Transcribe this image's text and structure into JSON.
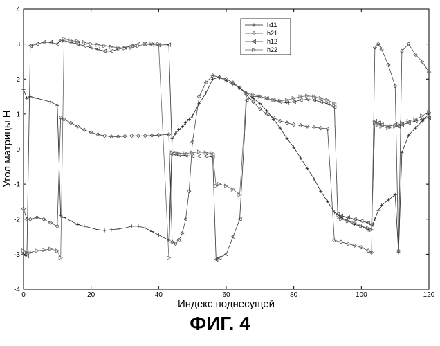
{
  "figure": {
    "caption": "ФИГ. 4"
  },
  "chart_data": {
    "type": "line",
    "title": "",
    "xlabel": "Индекс поднесущей",
    "ylabel": "Угол матрицы H",
    "xlim": [
      0,
      120
    ],
    "ylim": [
      -4,
      4
    ],
    "xticks": [
      0,
      20,
      40,
      60,
      80,
      100,
      120
    ],
    "yticks": [
      -4,
      -3,
      -2,
      -1,
      0,
      1,
      2,
      3,
      4
    ],
    "grid": false,
    "legend_position": "top-center",
    "series": [
      {
        "name": "h11",
        "marker": "plus",
        "color": "#222222",
        "x": [
          0,
          1,
          2,
          4,
          6,
          8,
          10,
          11,
          12,
          14,
          16,
          18,
          20,
          22,
          24,
          26,
          28,
          30,
          32,
          34,
          36,
          38,
          40,
          43,
          44,
          45,
          46,
          47,
          48,
          49,
          50,
          52,
          54,
          56,
          58,
          60,
          62,
          64,
          66,
          68,
          70,
          72,
          74,
          76,
          78,
          80,
          82,
          84,
          86,
          88,
          90,
          92,
          94,
          96,
          98,
          100,
          102,
          103,
          104,
          105,
          106,
          108,
          110,
          111,
          112,
          114,
          116,
          118,
          120
        ],
        "y": [
          1.7,
          1.45,
          1.5,
          1.45,
          1.4,
          1.35,
          1.25,
          -1.9,
          -1.95,
          -2.05,
          -2.15,
          -2.2,
          -2.25,
          -2.3,
          -2.32,
          -2.3,
          -2.28,
          -2.25,
          -2.2,
          -2.2,
          -2.25,
          -2.35,
          -2.45,
          -2.6,
          0.3,
          0.45,
          0.55,
          0.65,
          0.75,
          0.85,
          0.95,
          1.3,
          1.6,
          2.0,
          2.05,
          1.95,
          1.85,
          1.75,
          1.6,
          1.45,
          1.3,
          1.1,
          0.85,
          0.6,
          0.3,
          0.05,
          -0.25,
          -0.55,
          -0.85,
          -1.2,
          -1.5,
          -1.8,
          -1.95,
          -2.05,
          -2.15,
          -2.2,
          -2.3,
          -2.25,
          -2.0,
          -1.75,
          -1.6,
          -1.45,
          -1.3,
          -2.95,
          -0.1,
          0.4,
          0.6,
          0.8,
          1.0
        ]
      },
      {
        "name": "h21",
        "marker": "diamond",
        "color": "#444444",
        "x": [
          0,
          1,
          2,
          4,
          6,
          8,
          10,
          11,
          12,
          14,
          16,
          18,
          20,
          22,
          24,
          26,
          28,
          30,
          32,
          34,
          36,
          38,
          40,
          43,
          44,
          45,
          46,
          47,
          48,
          49,
          50,
          52,
          54,
          56,
          58,
          60,
          62,
          64,
          66,
          68,
          70,
          72,
          74,
          76,
          78,
          80,
          82,
          84,
          86,
          88,
          90,
          92,
          94,
          96,
          98,
          100,
          102,
          103,
          104,
          105,
          106,
          108,
          110,
          111,
          112,
          114,
          116,
          118,
          120
        ],
        "y": [
          -1.7,
          -2.0,
          -2.0,
          -1.95,
          -2.0,
          -2.1,
          -2.2,
          0.9,
          0.85,
          0.75,
          0.65,
          0.55,
          0.48,
          0.42,
          0.38,
          0.36,
          0.36,
          0.37,
          0.38,
          0.38,
          0.38,
          0.39,
          0.4,
          0.42,
          -2.65,
          -2.7,
          -2.6,
          -2.4,
          -2.0,
          -1.2,
          0.2,
          1.5,
          1.9,
          2.1,
          2.05,
          2.0,
          1.9,
          1.75,
          1.55,
          1.35,
          1.15,
          1.0,
          0.9,
          0.8,
          0.75,
          0.7,
          0.68,
          0.65,
          0.62,
          0.6,
          0.58,
          -2.6,
          -2.65,
          -2.7,
          -2.75,
          -2.8,
          -2.9,
          -2.95,
          2.9,
          3.0,
          2.85,
          2.4,
          1.8,
          -2.9,
          2.8,
          3.0,
          2.7,
          2.5,
          2.2
        ]
      },
      {
        "name": "h12",
        "marker": "triangle-left",
        "color": "#333333",
        "x": [
          0,
          1,
          2,
          4,
          6,
          8,
          10,
          11,
          12,
          14,
          16,
          18,
          20,
          22,
          24,
          26,
          28,
          30,
          32,
          34,
          36,
          38,
          40,
          43,
          44,
          45,
          46,
          48,
          50,
          52,
          54,
          56,
          57,
          58,
          60,
          62,
          64,
          66,
          68,
          70,
          72,
          74,
          76,
          78,
          80,
          82,
          84,
          86,
          88,
          90,
          92,
          93,
          94,
          96,
          98,
          100,
          102,
          103,
          104,
          105,
          106,
          108,
          110,
          111,
          112,
          114,
          116,
          118,
          120
        ],
        "y": [
          -3.0,
          -3.05,
          2.95,
          3.0,
          3.05,
          3.05,
          3.0,
          3.1,
          3.1,
          3.05,
          3.0,
          2.95,
          2.9,
          2.85,
          2.8,
          2.8,
          2.85,
          2.9,
          2.95,
          3.0,
          3.0,
          2.98,
          2.97,
          2.98,
          -0.15,
          -0.15,
          -0.17,
          -0.18,
          -0.2,
          -0.2,
          -0.2,
          -0.22,
          -3.15,
          -3.1,
          -3.0,
          -2.5,
          -2.0,
          1.4,
          1.5,
          1.5,
          1.45,
          1.4,
          1.35,
          1.32,
          1.35,
          1.4,
          1.42,
          1.4,
          1.35,
          1.3,
          1.2,
          -1.85,
          -1.9,
          -1.95,
          -2.0,
          -2.05,
          -2.1,
          -2.15,
          0.8,
          0.75,
          0.7,
          0.65,
          0.7,
          0.65,
          0.7,
          0.75,
          0.8,
          0.85,
          0.9
        ]
      },
      {
        "name": "h22",
        "marker": "triangle-right",
        "color": "#666666",
        "x": [
          0,
          1,
          2,
          4,
          6,
          8,
          10,
          11,
          12,
          14,
          16,
          18,
          20,
          22,
          24,
          26,
          28,
          30,
          32,
          34,
          36,
          38,
          40,
          43,
          44,
          45,
          46,
          48,
          50,
          52,
          54,
          56,
          57,
          58,
          60,
          62,
          64,
          66,
          68,
          70,
          72,
          74,
          76,
          78,
          80,
          82,
          84,
          86,
          88,
          90,
          92,
          93,
          94,
          96,
          98,
          100,
          102,
          103,
          104,
          105,
          106,
          108,
          110,
          111,
          112,
          114,
          116,
          118,
          120
        ],
        "y": [
          -2.9,
          -2.95,
          -2.95,
          -2.9,
          -2.88,
          -2.85,
          -2.9,
          -3.1,
          3.15,
          3.1,
          3.08,
          3.05,
          3.0,
          2.98,
          2.95,
          2.92,
          2.9,
          2.88,
          2.9,
          2.95,
          3.0,
          3.02,
          3.0,
          -3.1,
          -0.1,
          -0.1,
          -0.12,
          -0.12,
          -0.1,
          -0.08,
          -0.1,
          -0.12,
          -1.05,
          -1.0,
          -1.05,
          -1.15,
          -1.3,
          1.6,
          1.55,
          1.5,
          1.45,
          1.4,
          1.38,
          1.4,
          1.45,
          1.5,
          1.52,
          1.5,
          1.45,
          1.4,
          1.3,
          -1.95,
          -2.0,
          -2.05,
          -2.1,
          -2.2,
          -2.25,
          -2.3,
          0.75,
          0.7,
          0.65,
          0.6,
          0.65,
          0.7,
          0.75,
          0.8,
          0.85,
          0.95,
          1.05
        ]
      }
    ]
  }
}
